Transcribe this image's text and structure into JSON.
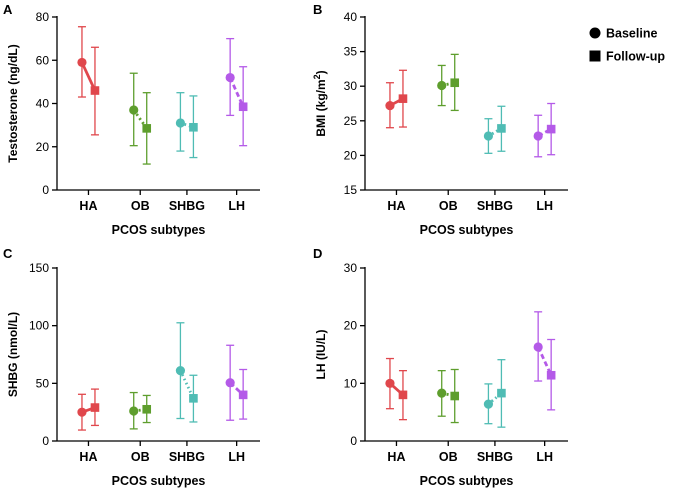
{
  "legend": {
    "baseline_label": "Baseline",
    "followup_label": "Follow-up"
  },
  "category_colors": {
    "HA": "#e0474c",
    "OB": "#5e9e2d",
    "SHBG": "#4fbcb4",
    "LH": "#b45ae8"
  },
  "chart_data": [
    {
      "id": "A",
      "type": "scatter",
      "panel_label": "A",
      "ylabel": "Testosterone (ng/dL)",
      "ylabel_parts": [
        {
          "text": "Testosterone (ng/dL)"
        }
      ],
      "xlabel": "PCOS subtypes",
      "categories": [
        "HA",
        "OB",
        "SHBG",
        "LH"
      ],
      "ylim": [
        0,
        80
      ],
      "yticks": [
        0,
        20,
        40,
        60,
        80
      ],
      "series": [
        {
          "name": "Baseline",
          "marker": "circle",
          "values": [
            59,
            37,
            31,
            52
          ],
          "err_low": [
            43,
            20.5,
            18,
            34.5
          ],
          "err_high": [
            75.5,
            54,
            45,
            70
          ]
        },
        {
          "name": "Follow-up",
          "marker": "square",
          "values": [
            46,
            28.5,
            29,
            38.5
          ],
          "err_low": [
            25.5,
            12,
            15,
            20.5
          ],
          "err_high": [
            66,
            45,
            43.5,
            57
          ]
        }
      ]
    },
    {
      "id": "B",
      "type": "scatter",
      "panel_label": "B",
      "ylabel": "BMI (kg/m2)",
      "ylabel_parts": [
        {
          "text": "BMI (kg/m"
        },
        {
          "text": "2",
          "sup": true
        },
        {
          "text": ")"
        }
      ],
      "xlabel": "PCOS subtypes",
      "categories": [
        "HA",
        "OB",
        "SHBG",
        "LH"
      ],
      "ylim": [
        15,
        40
      ],
      "yticks": [
        15,
        20,
        25,
        30,
        35,
        40
      ],
      "series": [
        {
          "name": "Baseline",
          "marker": "circle",
          "values": [
            27.2,
            30.1,
            22.8,
            22.8
          ],
          "err_low": [
            24,
            27.2,
            20.3,
            19.8
          ],
          "err_high": [
            30.5,
            33,
            25.3,
            25.8
          ]
        },
        {
          "name": "Follow-up",
          "marker": "square",
          "values": [
            28.2,
            30.5,
            23.9,
            23.8
          ],
          "err_low": [
            24.1,
            26.5,
            20.6,
            20.1
          ],
          "err_high": [
            32.3,
            34.6,
            27.1,
            27.5
          ]
        }
      ]
    },
    {
      "id": "C",
      "type": "scatter",
      "panel_label": "C",
      "ylabel": "SHBG (nmol/L)",
      "ylabel_parts": [
        {
          "text": "SHBG (nmol/L)"
        }
      ],
      "xlabel": "PCOS subtypes",
      "categories": [
        "HA",
        "OB",
        "SHBG",
        "LH"
      ],
      "ylim": [
        0,
        150
      ],
      "yticks": [
        0,
        50,
        100,
        150
      ],
      "series": [
        {
          "name": "Baseline",
          "marker": "circle",
          "values": [
            25,
            26,
            61,
            50.5
          ],
          "err_low": [
            9.5,
            10.5,
            19.5,
            18
          ],
          "err_high": [
            40.5,
            42,
            102.5,
            83
          ]
        },
        {
          "name": "Follow-up",
          "marker": "square",
          "values": [
            29,
            27.5,
            37,
            40
          ],
          "err_low": [
            13.5,
            16,
            16.5,
            19
          ],
          "err_high": [
            45,
            39.5,
            57,
            62
          ]
        }
      ]
    },
    {
      "id": "D",
      "type": "scatter",
      "panel_label": "D",
      "ylabel": "LH (IU/L)",
      "ylabel_parts": [
        {
          "text": "LH (IU/L)"
        }
      ],
      "xlabel": "PCOS subtypes",
      "categories": [
        "HA",
        "OB",
        "SHBG",
        "LH"
      ],
      "ylim": [
        0,
        30
      ],
      "yticks": [
        0,
        10,
        20,
        30
      ],
      "series": [
        {
          "name": "Baseline",
          "marker": "circle",
          "values": [
            10,
            8.3,
            6.4,
            16.3
          ],
          "err_low": [
            5.6,
            4.3,
            3,
            10.4
          ],
          "err_high": [
            14.3,
            12.2,
            9.9,
            22.4
          ]
        },
        {
          "name": "Follow-up",
          "marker": "square",
          "values": [
            8,
            7.8,
            8.3,
            11.4
          ],
          "err_low": [
            3.7,
            3.2,
            2.4,
            5.4
          ],
          "err_high": [
            12.2,
            12.4,
            14.1,
            17.6
          ]
        }
      ]
    }
  ]
}
